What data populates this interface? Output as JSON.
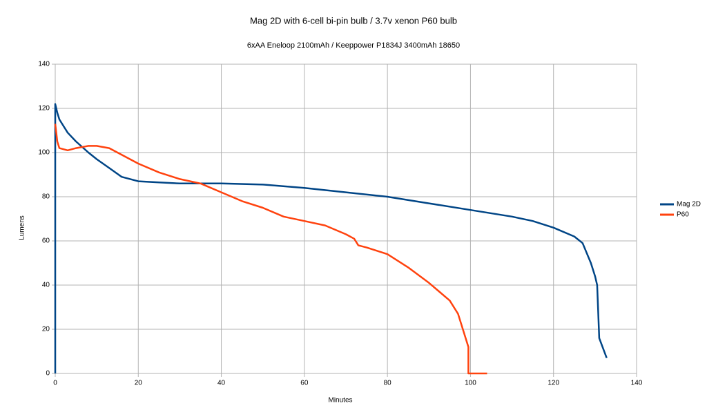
{
  "chart_data": {
    "type": "line",
    "title": "Mag 2D with 6-cell bi-pin bulb / 3.7v xenon P60 bulb",
    "subtitle": "6xAA Eneloop 2100mAh / Keeppower P1834J 3400mAh 18650",
    "x_label": "Minutes",
    "y_label": "Lumens",
    "xlim": [
      0,
      140
    ],
    "xticks": [
      0,
      20,
      40,
      60,
      80,
      100,
      120,
      140
    ],
    "ylim": [
      0,
      140
    ],
    "yticks": [
      0,
      20,
      40,
      60,
      80,
      100,
      120,
      140
    ],
    "grid": true,
    "legend": "right",
    "series": [
      {
        "name": "Mag 2D",
        "color": "#004586",
        "x": [
          0,
          0,
          0.5,
          1,
          2,
          3,
          5,
          8,
          10,
          13,
          16,
          20,
          25,
          30,
          40,
          50,
          60,
          70,
          80,
          90,
          100,
          110,
          115,
          120,
          125,
          127,
          129,
          130,
          130.5,
          131,
          132,
          132.8
        ],
        "values": [
          0,
          122,
          118,
          115,
          112,
          109,
          105,
          100,
          97,
          93,
          89,
          87,
          86.5,
          86,
          86,
          85.5,
          84,
          82,
          80,
          77,
          74,
          71,
          69,
          66,
          62,
          59,
          50,
          44,
          40,
          16,
          11,
          7
        ]
      },
      {
        "name": "P60",
        "color": "#ff420e",
        "x": [
          0,
          0.5,
          1,
          3,
          5,
          8,
          10,
          13,
          15,
          20,
          25,
          30,
          35,
          40,
          45,
          50,
          55,
          60,
          65,
          70,
          72,
          73,
          75,
          80,
          85,
          90,
          95,
          97,
          98.5,
          99.5,
          99.5,
          104
        ],
        "values": [
          113,
          105,
          102,
          101,
          102,
          103,
          103,
          102,
          100,
          95,
          91,
          88,
          86,
          82,
          78,
          75,
          71,
          69,
          67,
          63,
          61,
          58,
          57,
          54,
          48,
          41,
          33,
          27,
          18,
          12,
          0,
          0
        ]
      }
    ]
  }
}
